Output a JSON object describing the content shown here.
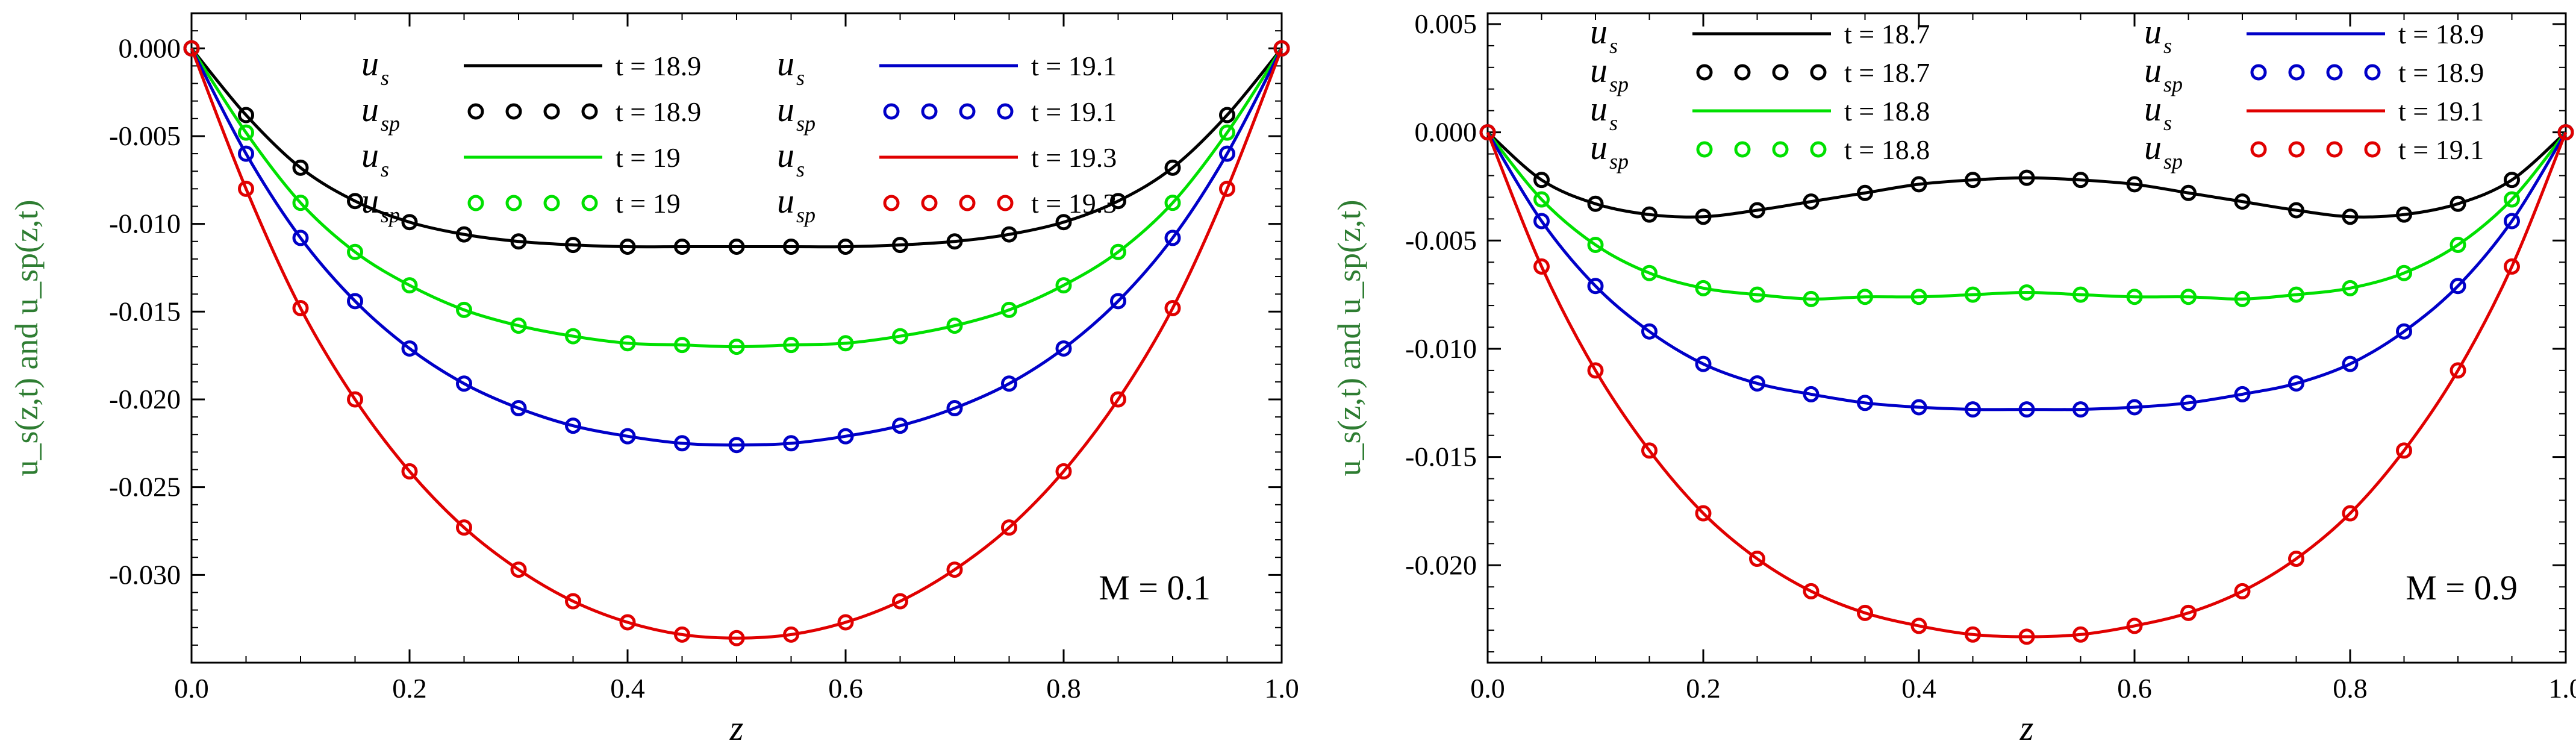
{
  "colors": {
    "black": "#000000",
    "green": "#00e000",
    "blue": "#0000c8",
    "red": "#e00000"
  },
  "chart_data": [
    {
      "type": "line",
      "xlabel": "z",
      "ylabel": "u_s(z,t) and u_sp(z,t)",
      "xlim": [
        0,
        1
      ],
      "ylim": [
        -0.035,
        0.002
      ],
      "xticks": [
        "0.0",
        "0.2",
        "0.4",
        "0.6",
        "0.8",
        "1.0"
      ],
      "yticks": [
        "0.000",
        "-0.005",
        "-0.010",
        "-0.015",
        "-0.020",
        "-0.025",
        "-0.030"
      ],
      "annotation": "M = 0.1",
      "legend": [
        {
          "sym": "u",
          "sub": "s",
          "style": "line",
          "color": "black",
          "label": "t = 18.9"
        },
        {
          "sym": "u",
          "sub": "sp",
          "style": "circles",
          "color": "black",
          "label": "t = 18.9"
        },
        {
          "sym": "u",
          "sub": "s",
          "style": "line",
          "color": "green",
          "label": "t = 19"
        },
        {
          "sym": "u",
          "sub": "sp",
          "style": "circles",
          "color": "green",
          "label": "t = 19"
        },
        {
          "sym": "u",
          "sub": "s",
          "style": "line",
          "color": "blue",
          "label": "t = 19.1"
        },
        {
          "sym": "u",
          "sub": "sp",
          "style": "circles",
          "color": "blue",
          "label": "t = 19.1"
        },
        {
          "sym": "u",
          "sub": "s",
          "style": "line",
          "color": "red",
          "label": "t = 19.3"
        },
        {
          "sym": "u",
          "sub": "sp",
          "style": "circles",
          "color": "red",
          "label": "t = 19.3"
        }
      ],
      "x": [
        0.0,
        0.05,
        0.1,
        0.15,
        0.2,
        0.25,
        0.3,
        0.35,
        0.4,
        0.45,
        0.5,
        0.55,
        0.6,
        0.65,
        0.7,
        0.75,
        0.8,
        0.85,
        0.9,
        0.95,
        1.0
      ],
      "series": [
        {
          "color": "black",
          "values": [
            0.0,
            -0.0038,
            -0.0068,
            -0.0087,
            -0.0099,
            -0.0106,
            -0.011,
            -0.0112,
            -0.0113,
            -0.0113,
            -0.0113,
            -0.0113,
            -0.0113,
            -0.0112,
            -0.011,
            -0.0106,
            -0.0099,
            -0.0087,
            -0.0068,
            -0.0038,
            0.0
          ]
        },
        {
          "color": "green",
          "values": [
            0.0,
            -0.0048,
            -0.0088,
            -0.0116,
            -0.0135,
            -0.0149,
            -0.0158,
            -0.0164,
            -0.0168,
            -0.0169,
            -0.017,
            -0.0169,
            -0.0168,
            -0.0164,
            -0.0158,
            -0.0149,
            -0.0135,
            -0.0116,
            -0.0088,
            -0.0048,
            0.0
          ]
        },
        {
          "color": "blue",
          "values": [
            0.0,
            -0.006,
            -0.0108,
            -0.0144,
            -0.0171,
            -0.0191,
            -0.0205,
            -0.0215,
            -0.0221,
            -0.0225,
            -0.0226,
            -0.0225,
            -0.0221,
            -0.0215,
            -0.0205,
            -0.0191,
            -0.0171,
            -0.0144,
            -0.0108,
            -0.006,
            0.0
          ]
        },
        {
          "color": "red",
          "values": [
            0.0,
            -0.008,
            -0.0148,
            -0.02,
            -0.0241,
            -0.0273,
            -0.0297,
            -0.0315,
            -0.0327,
            -0.0334,
            -0.0336,
            -0.0334,
            -0.0327,
            -0.0315,
            -0.0297,
            -0.0273,
            -0.0241,
            -0.02,
            -0.0148,
            -0.008,
            0.0
          ]
        }
      ]
    },
    {
      "type": "line",
      "xlabel": "z",
      "ylabel": "u_s(z,t) and u_sp(z,t)",
      "xlim": [
        0,
        1
      ],
      "ylim": [
        -0.0245,
        0.0055
      ],
      "xticks": [
        "0.0",
        "0.2",
        "0.4",
        "0.6",
        "0.8",
        "1.0"
      ],
      "yticks": [
        "0.005",
        "0.000",
        "-0.005",
        "-0.010",
        "-0.015",
        "-0.020"
      ],
      "annotation": "M = 0.9",
      "legend": [
        {
          "sym": "u",
          "sub": "s",
          "style": "line",
          "color": "black",
          "label": "t = 18.7"
        },
        {
          "sym": "u",
          "sub": "sp",
          "style": "circles",
          "color": "black",
          "label": "t = 18.7"
        },
        {
          "sym": "u",
          "sub": "s",
          "style": "line",
          "color": "green",
          "label": "t = 18.8"
        },
        {
          "sym": "u",
          "sub": "sp",
          "style": "circles",
          "color": "green",
          "label": "t = 18.8"
        },
        {
          "sym": "u",
          "sub": "s",
          "style": "line",
          "color": "blue",
          "label": "t = 18.9"
        },
        {
          "sym": "u",
          "sub": "sp",
          "style": "circles",
          "color": "blue",
          "label": "t = 18.9"
        },
        {
          "sym": "u",
          "sub": "s",
          "style": "line",
          "color": "red",
          "label": "t = 19.1"
        },
        {
          "sym": "u",
          "sub": "sp",
          "style": "circles",
          "color": "red",
          "label": "t = 19.1"
        }
      ],
      "x": [
        0.0,
        0.05,
        0.1,
        0.15,
        0.2,
        0.25,
        0.3,
        0.35,
        0.4,
        0.45,
        0.5,
        0.55,
        0.6,
        0.65,
        0.7,
        0.75,
        0.8,
        0.85,
        0.9,
        0.95,
        1.0
      ],
      "series": [
        {
          "color": "black",
          "values": [
            0.0,
            -0.0022,
            -0.0033,
            -0.0038,
            -0.0039,
            -0.0036,
            -0.0032,
            -0.0028,
            -0.0024,
            -0.0022,
            -0.0021,
            -0.0022,
            -0.0024,
            -0.0028,
            -0.0032,
            -0.0036,
            -0.0039,
            -0.0038,
            -0.0033,
            -0.0022,
            0.0
          ]
        },
        {
          "color": "green",
          "values": [
            0.0,
            -0.0031,
            -0.0052,
            -0.0065,
            -0.0072,
            -0.0075,
            -0.0077,
            -0.0076,
            -0.0076,
            -0.0075,
            -0.0074,
            -0.0075,
            -0.0076,
            -0.0076,
            -0.0077,
            -0.0075,
            -0.0072,
            -0.0065,
            -0.0052,
            -0.0031,
            0.0
          ]
        },
        {
          "color": "blue",
          "values": [
            0.0,
            -0.0041,
            -0.0071,
            -0.0092,
            -0.0107,
            -0.0116,
            -0.0121,
            -0.0125,
            -0.0127,
            -0.0128,
            -0.0128,
            -0.0128,
            -0.0127,
            -0.0125,
            -0.0121,
            -0.0116,
            -0.0107,
            -0.0092,
            -0.0071,
            -0.0041,
            0.0
          ]
        },
        {
          "color": "red",
          "values": [
            0.0,
            -0.0062,
            -0.011,
            -0.0147,
            -0.0176,
            -0.0197,
            -0.0212,
            -0.0222,
            -0.0228,
            -0.0232,
            -0.0233,
            -0.0232,
            -0.0228,
            -0.0222,
            -0.0212,
            -0.0197,
            -0.0176,
            -0.0147,
            -0.011,
            -0.0062,
            0.0
          ]
        }
      ]
    }
  ]
}
